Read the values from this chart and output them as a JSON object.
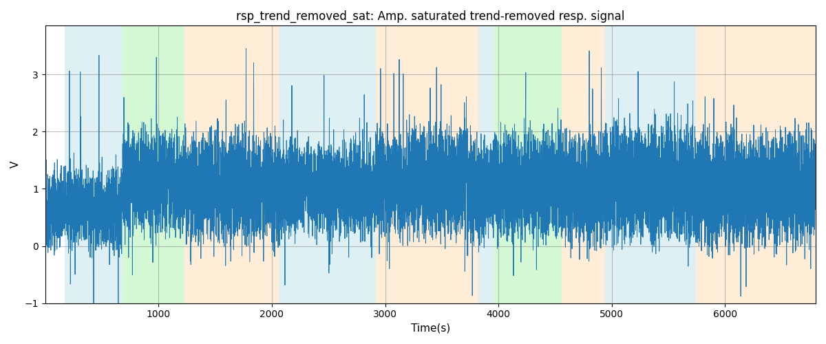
{
  "title": "rsp_trend_removed_sat: Amp. saturated trend-removed resp. signal",
  "xlabel": "Time(s)",
  "ylabel": "V",
  "ylim": [
    -1,
    3.85
  ],
  "xlim": [
    0,
    6800
  ],
  "line_color": "#1f77b4",
  "line_width": 0.7,
  "bg_color": "white",
  "grid_color": "gray",
  "grid_alpha": 0.5,
  "grid_linewidth": 0.8,
  "regions": [
    {
      "start": 170,
      "end": 680,
      "color": "#add8e6",
      "alpha": 0.38
    },
    {
      "start": 680,
      "end": 1230,
      "color": "#90ee90",
      "alpha": 0.38
    },
    {
      "start": 1230,
      "end": 2060,
      "color": "#ffd8a8",
      "alpha": 0.45
    },
    {
      "start": 2060,
      "end": 2920,
      "color": "#add8e6",
      "alpha": 0.38
    },
    {
      "start": 2920,
      "end": 3820,
      "color": "#ffd8a8",
      "alpha": 0.45
    },
    {
      "start": 3820,
      "end": 3960,
      "color": "#add8e6",
      "alpha": 0.38
    },
    {
      "start": 3960,
      "end": 4560,
      "color": "#90ee90",
      "alpha": 0.38
    },
    {
      "start": 4560,
      "end": 4940,
      "color": "#ffd8a8",
      "alpha": 0.45
    },
    {
      "start": 4940,
      "end": 5740,
      "color": "#add8e6",
      "alpha": 0.38
    },
    {
      "start": 5740,
      "end": 6800,
      "color": "#ffd8a8",
      "alpha": 0.45
    }
  ],
  "seed": 42,
  "n_points": 6800,
  "figsize": [
    12,
    5
  ],
  "dpi": 100
}
